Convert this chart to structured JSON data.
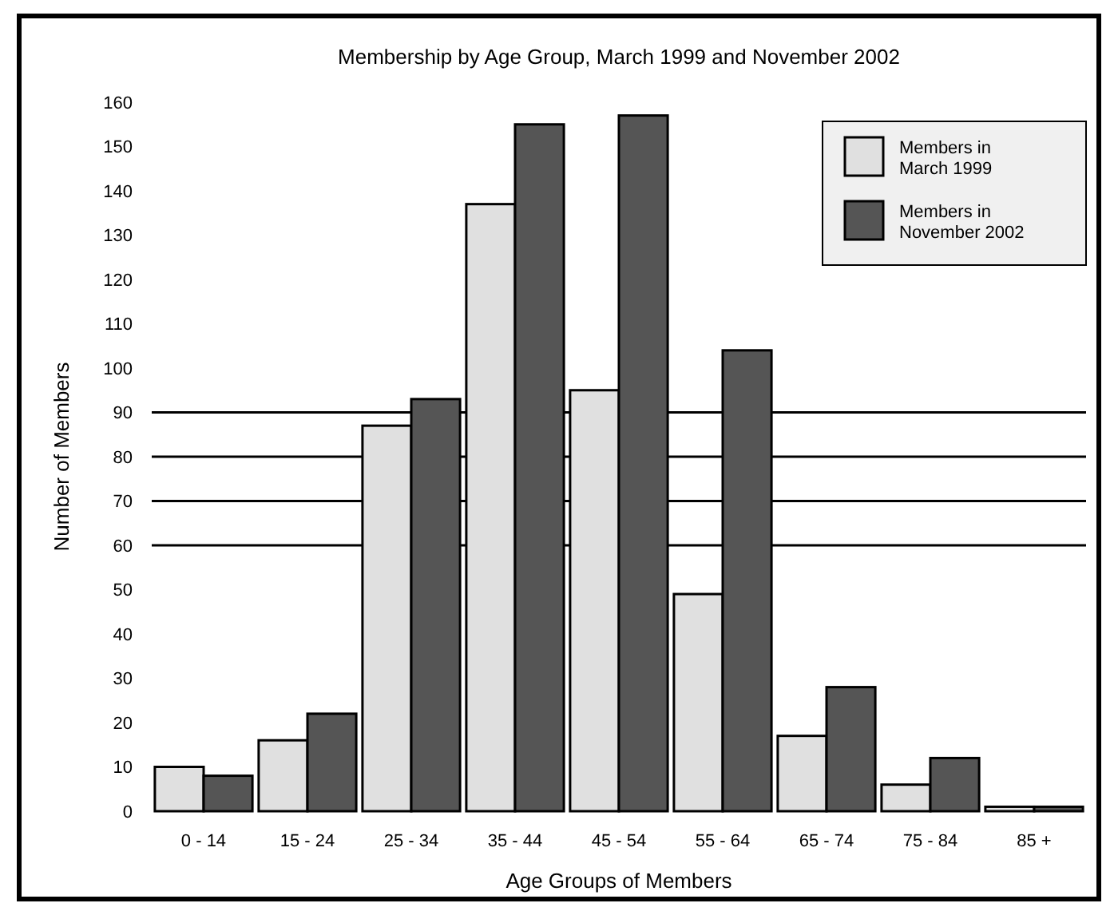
{
  "chart_data": {
    "type": "bar",
    "title": "Membership by Age Group, March 1999 and November 2002",
    "xlabel": "Age Groups of Members",
    "ylabel": "Number of Members",
    "categories": [
      "0 - 14",
      "15 - 24",
      "25 - 34",
      "35 - 44",
      "45 - 54",
      "55 - 64",
      "65 - 74",
      "75 - 84",
      "85 +"
    ],
    "series": [
      {
        "name": "Members in March 1999",
        "color": "#e0e0e0",
        "values": [
          10,
          16,
          87,
          137,
          95,
          49,
          17,
          6,
          1
        ]
      },
      {
        "name": "Members in November 2002",
        "color": "#555555",
        "values": [
          8,
          22,
          93,
          155,
          157,
          104,
          28,
          12,
          1
        ]
      }
    ],
    "ylim": [
      0,
      160
    ],
    "yticks": [
      0,
      10,
      20,
      30,
      40,
      50,
      60,
      70,
      80,
      90,
      100,
      110,
      120,
      130,
      140,
      150,
      160
    ],
    "ref_lines": [
      {
        "axis": "y",
        "value": 60,
        "color": "#000000"
      },
      {
        "axis": "y",
        "value": 70,
        "color": "#000000"
      },
      {
        "axis": "y",
        "value": 80,
        "color": "#000000"
      },
      {
        "axis": "y",
        "value": 90,
        "color": "#000000"
      }
    ],
    "legend": "top right",
    "grid": false
  }
}
